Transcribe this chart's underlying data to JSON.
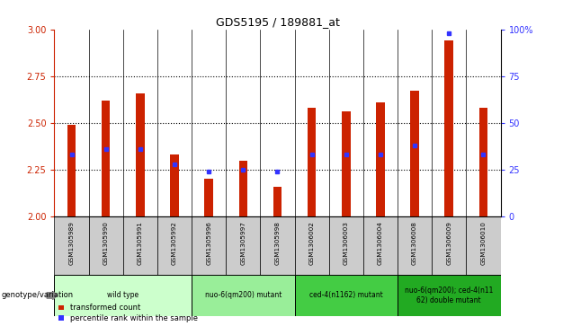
{
  "title": "GDS5195 / 189881_at",
  "samples": [
    "GSM1305989",
    "GSM1305990",
    "GSM1305991",
    "GSM1305992",
    "GSM1305996",
    "GSM1305997",
    "GSM1305998",
    "GSM1306002",
    "GSM1306003",
    "GSM1306004",
    "GSM1306008",
    "GSM1306009",
    "GSM1306010"
  ],
  "transformed_counts": [
    2.49,
    2.62,
    2.66,
    2.33,
    2.2,
    2.3,
    2.16,
    2.58,
    2.56,
    2.61,
    2.67,
    2.94,
    2.58
  ],
  "percentile_ranks": [
    33,
    36,
    36,
    28,
    24,
    25,
    24,
    33,
    33,
    33,
    38,
    98,
    33
  ],
  "ylim_left": [
    2.0,
    3.0
  ],
  "ylim_right": [
    0,
    100
  ],
  "yticks_left": [
    2.0,
    2.25,
    2.5,
    2.75,
    3.0
  ],
  "yticks_right": [
    0,
    25,
    50,
    75,
    100
  ],
  "bar_color": "#cc2200",
  "marker_color": "#3333ff",
  "bar_bottom": 2.0,
  "bar_width": 0.25,
  "groups": [
    {
      "label": "wild type",
      "indices": [
        0,
        1,
        2,
        3
      ],
      "color": "#ccffcc"
    },
    {
      "label": "nuo-6(qm200) mutant",
      "indices": [
        4,
        5,
        6
      ],
      "color": "#99ee99"
    },
    {
      "label": "ced-4(n1162) mutant",
      "indices": [
        7,
        8,
        9
      ],
      "color": "#44cc44"
    },
    {
      "label": "nuo-6(qm200); ced-4(n11\n62) double mutant",
      "indices": [
        10,
        11,
        12
      ],
      "color": "#22aa22"
    }
  ],
  "xlabel_color": "#cc2200",
  "ylabel_right_color": "#3333ff",
  "grid_linestyle": "dotted",
  "background_color": "#ffffff",
  "sample_cell_color": "#cccccc",
  "genotype_label": "genotype/variation"
}
